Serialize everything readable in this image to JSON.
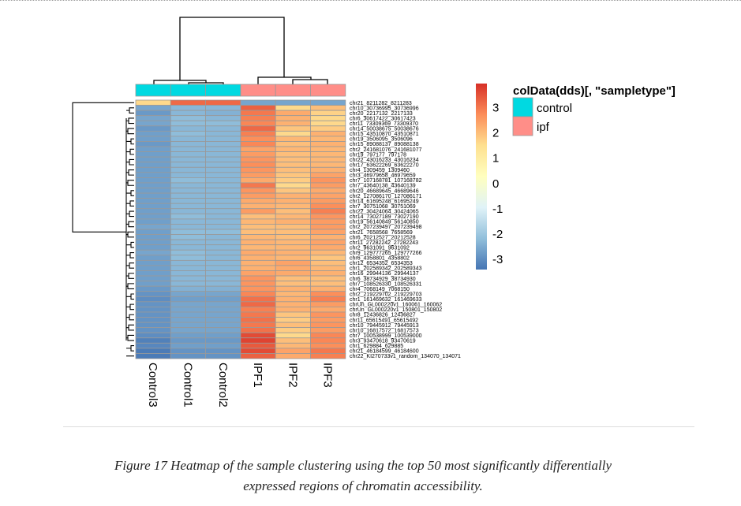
{
  "chart_data": {
    "type": "heatmap",
    "columns": [
      "Control3",
      "Control1",
      "Control2",
      "IPF1",
      "IPF2",
      "IPF3"
    ],
    "column_annotation": [
      "control",
      "control",
      "control",
      "ipf",
      "ipf",
      "ipf"
    ],
    "annotation_legend": {
      "title": "colData(dds)[, \"sampletype\"]",
      "items": [
        {
          "label": "control",
          "color": "#00D9E1"
        },
        {
          "label": "ipf",
          "color": "#FF8E88"
        }
      ]
    },
    "colorbar": {
      "ticks": [
        "3",
        "2",
        "1",
        "0",
        "-1",
        "-2",
        "-3"
      ],
      "range": [
        -3.4,
        3.95
      ],
      "palette": [
        "#4575B4",
        "#91BFDB",
        "#E0F3F8",
        "#FFFFBF",
        "#FEE090",
        "#FC8D59",
        "#D73027"
      ]
    },
    "rows": [
      "chr21_8211282_8211283",
      "chr10_30736995_30736996",
      "chr20_2217132_2217133",
      "chr6_30617422_30617423",
      "chr11_73309369_73309370",
      "chr14_50038675_50038676",
      "chr15_43510870_43510871",
      "chr19_3506095_3506096",
      "chr15_89088137_89088138",
      "chr2_241681076_241681077",
      "chr19_797177_797178",
      "chr22_43016233_43016234",
      "chr17_63622269_63622270",
      "chr4_1309459_1309460",
      "chr3_46979658_46979659",
      "chr7_107168781_107168782",
      "chr7_43640138_43640139",
      "chr20_46689645_46689646",
      "chr2_127086170_127086171",
      "chr14_61695248_61695249",
      "chr7_30751068_30751069",
      "chr22_30424064_30424065",
      "chr14_73027189_73027190",
      "chr19_56140849_56140850",
      "chr2_207239497_207239498",
      "chr21_7658568_7658569",
      "chr6_20212527_20212528",
      "chr11_27282242_27282243",
      "chr2_9631091_9631092",
      "chr9_129777265_129777266",
      "chr6_4358801_4358802",
      "chr12_6534352_6534353",
      "chr1_202589342_202589343",
      "chr16_29944136_29944137",
      "chr6_38734929_38734930",
      "chr7_108526330_108526331",
      "chr4_7068149_7068150",
      "chr2_219229702_219229703",
      "chr1_161469632_161469633",
      "chrUn_GL000220v1_160061_160062",
      "chrUn_GL000220v1_150801_150802",
      "chr8_12436826_12436827",
      "chr11_65615491_65615492",
      "chr10_79445912_79445913",
      "chr10_16817572_16817573",
      "chr7_100538999_100539000",
      "chr3_93470618_93470619",
      "chr1_629884_629885",
      "chr21_46184599_46184600",
      "chr22_KI270733v1_random_134070_134071"
    ],
    "values": [
      [
        1.6,
        3.2,
        3.2,
        -2.6,
        -2.6,
        -2.6
      ],
      [
        -2.6,
        -2.3,
        -2.3,
        3.3,
        1.6,
        2.0
      ],
      [
        -2.8,
        -2.3,
        -2.4,
        3.0,
        2.3,
        1.7
      ],
      [
        -2.6,
        -2.2,
        -2.3,
        2.9,
        2.2,
        1.6
      ],
      [
        -2.6,
        -2.2,
        -2.2,
        2.8,
        2.2,
        1.6
      ],
      [
        -2.8,
        -2.3,
        -2.3,
        3.2,
        1.9,
        1.8
      ],
      [
        -2.7,
        -2.2,
        -2.3,
        2.9,
        1.6,
        2.2
      ],
      [
        -2.7,
        -2.3,
        -2.3,
        2.7,
        2.1,
        2.1
      ],
      [
        -2.8,
        -2.3,
        -2.3,
        2.8,
        2.0,
        2.2
      ],
      [
        -2.7,
        -2.3,
        -2.3,
        2.4,
        2.1,
        2.1
      ],
      [
        -2.7,
        -2.3,
        -2.3,
        2.5,
        2.0,
        2.1
      ],
      [
        -2.7,
        -2.3,
        -2.3,
        2.6,
        2.0,
        2.1
      ],
      [
        -2.7,
        -2.3,
        -2.3,
        2.7,
        2.0,
        2.1
      ],
      [
        -2.7,
        -2.3,
        -2.3,
        2.6,
        2.0,
        2.2
      ],
      [
        -2.7,
        -2.3,
        -2.3,
        2.5,
        1.9,
        2.4
      ],
      [
        -2.7,
        -2.2,
        -2.3,
        2.3,
        1.8,
        2.6
      ],
      [
        -2.7,
        -2.3,
        -2.3,
        3.0,
        1.6,
        2.5
      ],
      [
        -2.7,
        -2.3,
        -2.3,
        2.6,
        1.9,
        2.3
      ],
      [
        -2.7,
        -2.3,
        -2.3,
        2.5,
        2.2,
        2.4
      ],
      [
        -2.7,
        -2.3,
        -2.3,
        2.3,
        2.2,
        2.5
      ],
      [
        -2.7,
        -2.3,
        -2.3,
        2.2,
        2.1,
        2.7
      ],
      [
        -2.7,
        -2.3,
        -2.3,
        2.5,
        2.0,
        2.9
      ],
      [
        -2.7,
        -2.2,
        -2.3,
        2.0,
        2.1,
        2.6
      ],
      [
        -2.7,
        -2.3,
        -2.3,
        2.1,
        2.2,
        2.5
      ],
      [
        -2.6,
        -2.3,
        -2.3,
        2.0,
        2.0,
        2.5
      ],
      [
        -2.7,
        -2.2,
        -2.2,
        2.0,
        2.0,
        2.4
      ],
      [
        -2.7,
        -2.2,
        -2.3,
        2.1,
        2.0,
        2.2
      ],
      [
        -2.7,
        -2.3,
        -2.3,
        2.2,
        2.1,
        2.4
      ],
      [
        -2.7,
        -2.3,
        -2.3,
        2.1,
        2.1,
        2.3
      ],
      [
        -2.6,
        -2.2,
        -2.3,
        2.3,
        2.2,
        2.1
      ],
      [
        -2.7,
        -2.2,
        -2.3,
        2.2,
        2.1,
        1.9
      ],
      [
        -2.7,
        -2.3,
        -2.3,
        2.2,
        2.4,
        2.0
      ],
      [
        -2.7,
        -2.3,
        -2.3,
        2.2,
        2.3,
        2.1
      ],
      [
        -2.7,
        -2.3,
        -2.3,
        2.4,
        2.3,
        2.2
      ],
      [
        -2.7,
        -2.3,
        -2.3,
        2.6,
        2.0,
        2.0
      ],
      [
        -2.7,
        -2.3,
        -2.3,
        2.6,
        2.0,
        2.0
      ],
      [
        -2.8,
        -2.4,
        -2.4,
        2.6,
        2.2,
        2.2
      ],
      [
        -2.9,
        -2.6,
        -2.6,
        2.8,
        2.1,
        2.7
      ],
      [
        -3.0,
        -2.7,
        -2.7,
        3.1,
        2.2,
        2.9
      ],
      [
        -2.9,
        -2.6,
        -2.6,
        3.2,
        2.2,
        2.5
      ],
      [
        -2.9,
        -2.6,
        -2.6,
        2.9,
        2.2,
        2.3
      ],
      [
        -2.9,
        -2.6,
        -2.6,
        3.0,
        1.9,
        2.6
      ],
      [
        -2.9,
        -2.6,
        -2.6,
        3.1,
        1.8,
        2.5
      ],
      [
        -2.9,
        -2.6,
        -2.6,
        3.0,
        2.0,
        2.6
      ],
      [
        -2.9,
        -2.6,
        -2.6,
        3.1,
        1.8,
        2.5
      ],
      [
        -3.0,
        -2.7,
        -2.7,
        3.6,
        1.6,
        2.8
      ],
      [
        -3.2,
        -2.8,
        -2.8,
        3.7,
        2.0,
        2.8
      ],
      [
        -3.1,
        -2.7,
        -2.7,
        3.4,
        2.1,
        2.7
      ],
      [
        -3.3,
        -2.9,
        -2.9,
        3.6,
        2.4,
        3.0
      ],
      [
        -3.3,
        -2.9,
        -2.9,
        3.3,
        2.3,
        2.9
      ]
    ],
    "grid_color": "#999999"
  },
  "caption": {
    "line1": "Figure 17 Heatmap of the sample clustering using the top 50 most significantly differentially",
    "line2": "expressed regions of chromatin accessibility."
  }
}
